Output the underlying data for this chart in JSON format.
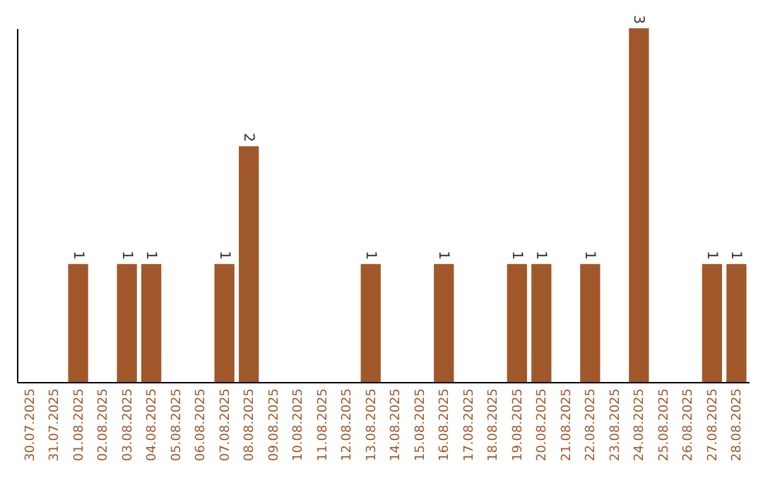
{
  "chart_data": {
    "type": "bar",
    "categories": [
      "30.07.2025",
      "31.07.2025",
      "01.08.2025",
      "02.08.2025",
      "03.08.2025",
      "04.08.2025",
      "05.08.2025",
      "06.08.2025",
      "07.08.2025",
      "08.08.2025",
      "09.08.2025",
      "10.08.2025",
      "11.08.2025",
      "12.08.2025",
      "13.08.2025",
      "14.08.2025",
      "15.08.2025",
      "16.08.2025",
      "17.08.2025",
      "18.08.2025",
      "19.08.2025",
      "20.08.2025",
      "21.08.2025",
      "22.08.2025",
      "23.08.2025",
      "24.08.2025",
      "25.08.2025",
      "26.08.2025",
      "27.08.2025",
      "28.08.2025"
    ],
    "values": [
      0,
      0,
      1,
      0,
      1,
      1,
      0,
      0,
      1,
      2,
      0,
      0,
      0,
      0,
      1,
      0,
      0,
      1,
      0,
      0,
      1,
      1,
      0,
      1,
      0,
      3,
      0,
      0,
      1,
      1
    ],
    "value_labels": [
      null,
      null,
      "1",
      null,
      "1",
      "1",
      null,
      null,
      "1",
      "2",
      null,
      null,
      null,
      null,
      "1",
      null,
      null,
      "1",
      null,
      null,
      "1",
      "1",
      null,
      "1",
      null,
      "3",
      null,
      null,
      "1",
      "1"
    ],
    "color": "#a0582a",
    "tick_labels": "x",
    "grid": false
  }
}
